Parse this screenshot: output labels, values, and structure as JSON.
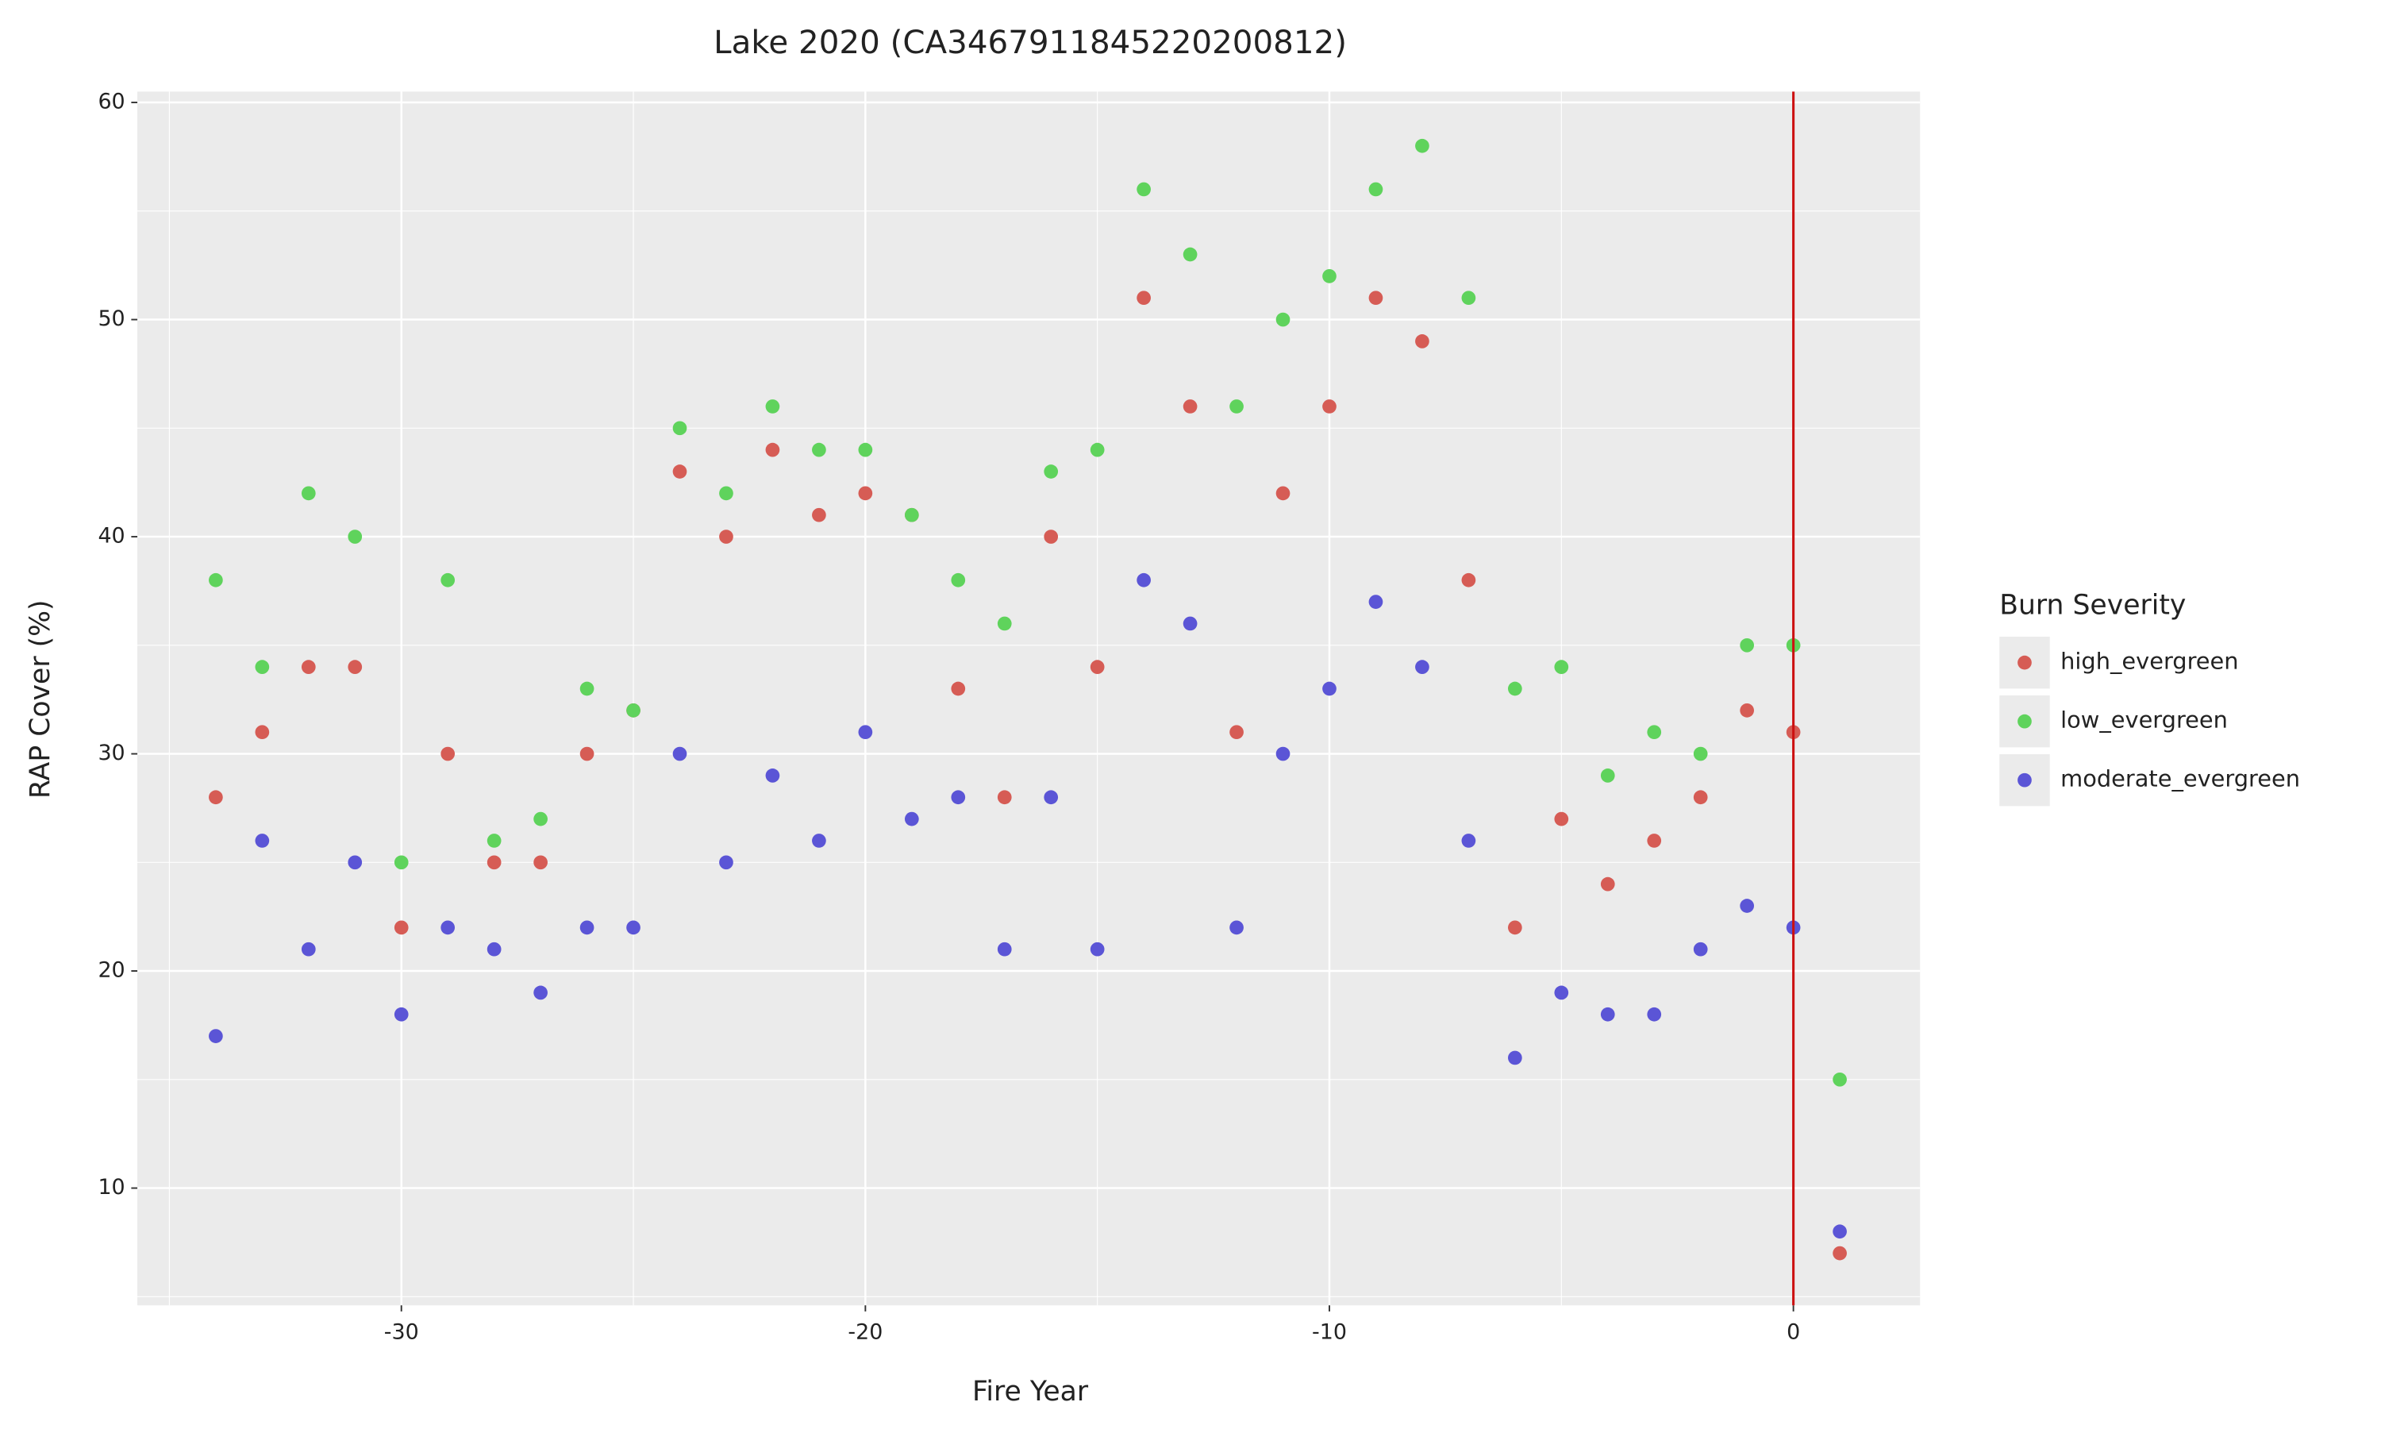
{
  "chart_data": {
    "type": "scatter",
    "title": "Lake 2020 (CA3467911845220200812)",
    "x_label": "Fire Year",
    "y_label": "RAP Cover (%)",
    "legend_title": "Burn Severity",
    "x": [
      -34,
      -33,
      -32,
      -31,
      -30,
      -29,
      -28,
      -27,
      -26,
      -25,
      -24,
      -23,
      -22,
      -21,
      -20,
      -19,
      -18,
      -17,
      -16,
      -15,
      -14,
      -13,
      -12,
      -11,
      -10,
      -9,
      -8,
      -7,
      -6,
      -5,
      -4,
      -3,
      -2,
      -1,
      0,
      1
    ],
    "series": [
      {
        "name": "high_evergreen",
        "color": "#d65c55",
        "values": [
          28,
          31,
          34,
          34,
          22,
          30,
          25,
          25,
          30,
          32,
          43,
          40,
          44,
          41,
          42,
          41,
          33,
          28,
          40,
          34,
          51,
          46,
          31,
          42,
          46,
          51,
          49,
          38,
          22,
          27,
          24,
          26,
          28,
          32,
          31,
          7
        ]
      },
      {
        "name": "low_evergreen",
        "color": "#5fd35c",
        "values": [
          38,
          34,
          42,
          40,
          25,
          38,
          26,
          27,
          33,
          32,
          45,
          42,
          46,
          44,
          44,
          41,
          38,
          36,
          43,
          44,
          56,
          53,
          46,
          50,
          52,
          56,
          58,
          51,
          33,
          34,
          29,
          31,
          30,
          35,
          35,
          15
        ]
      },
      {
        "name": "moderate_evergreen",
        "color": "#5b55d6",
        "values": [
          17,
          26,
          21,
          25,
          18,
          22,
          21,
          19,
          22,
          22,
          30,
          25,
          29,
          26,
          31,
          27,
          28,
          21,
          28,
          21,
          38,
          36,
          22,
          30,
          33,
          37,
          34,
          26,
          16,
          19,
          18,
          18,
          21,
          23,
          22,
          8
        ]
      }
    ],
    "xlim": [
      -35.69,
      2.73
    ],
    "ylim": [
      4.6,
      60.5
    ],
    "xticks": [
      -30,
      -20,
      -10,
      0
    ],
    "yticks": [
      10,
      20,
      30,
      40,
      50,
      60
    ],
    "grid": true,
    "vline": {
      "x": 0,
      "color": "#cc1111"
    },
    "legend": "right"
  }
}
